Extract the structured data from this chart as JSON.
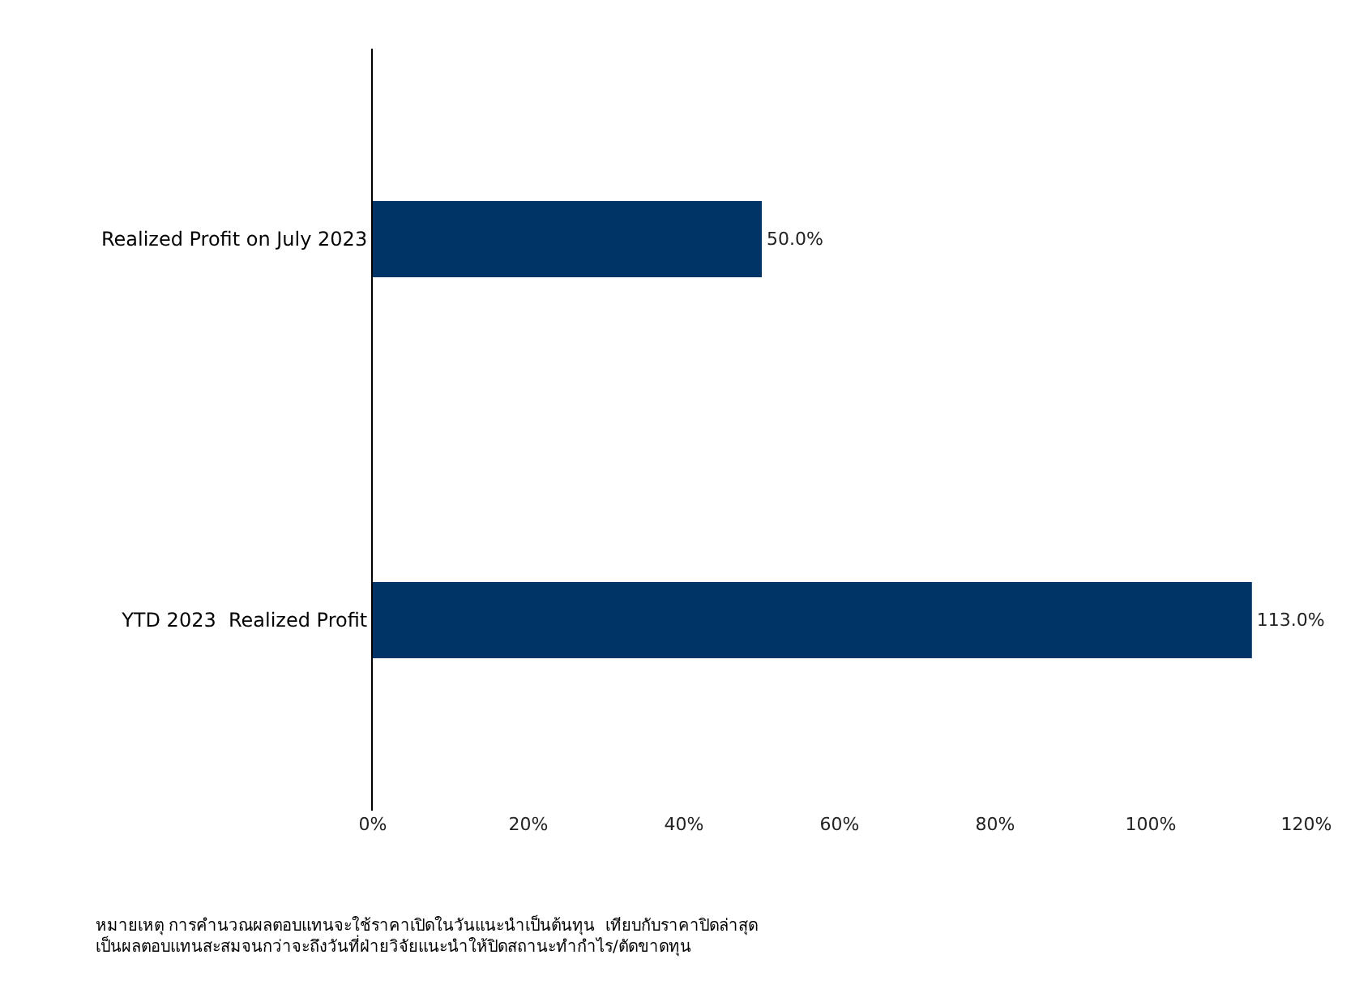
{
  "chart_data": {
    "type": "bar",
    "orientation": "horizontal",
    "categories": [
      "Realized Profit on July 2023",
      "YTD 2023  Realized Profit"
    ],
    "values": [
      50.0,
      113.0
    ],
    "color": "#003366",
    "value_labels": [
      "50.0%",
      "113.0%"
    ],
    "xlim": [
      0,
      120
    ],
    "xticks": [
      {
        "value": 0,
        "label": "0%"
      },
      {
        "value": 20,
        "label": "20%"
      },
      {
        "value": 40,
        "label": "40%"
      },
      {
        "value": 60,
        "label": "60%"
      },
      {
        "value": 80,
        "label": "80%"
      },
      {
        "value": 100,
        "label": "100%"
      },
      {
        "value": 120,
        "label": "120%"
      }
    ],
    "legend": false,
    "annotations": [
      "หมายเหตุ การคำนวณผลตอบแทนจะใช้ราคาเปิดในวันแนะนำเป็นต้นทุน  เทียบกับราคาปิดล่าสุด  เป็นผลตอบแทนสะสมจนกว่าจะถึงวันที่ฝ่ายวิจัยแนะนำให้ปิดสถานะทำกำไร/ตัดขาดทุน"
    ]
  }
}
